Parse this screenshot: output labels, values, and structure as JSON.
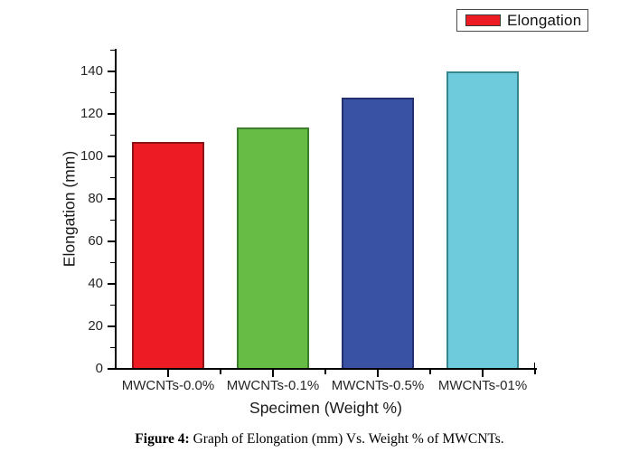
{
  "legend": {
    "label": "Elongation",
    "swatch_color": "#ED1C24",
    "position": "top-right"
  },
  "chart_data": {
    "type": "bar",
    "title": "",
    "categories": [
      "MWCNTs-0.0%",
      "MWCNTs-0.1%",
      "MWCNTs-0.5%",
      "MWCNTs-01%"
    ],
    "series": [
      {
        "name": "Elongation",
        "values": [
          107,
          113.5,
          127.5,
          140
        ]
      }
    ],
    "xlabel": "Specimen (Weight %)",
    "ylabel": "Elongation (mm)",
    "ylim": [
      0,
      150
    ],
    "ytick_major_step": 20,
    "ytick_minor_step": 10,
    "ytick_labels": [
      "0",
      "20",
      "40",
      "60",
      "80",
      "100",
      "120",
      "140"
    ],
    "bar_fill_colors": [
      "#ED1C24",
      "#67BC45",
      "#3A52A4",
      "#6DCBDC"
    ],
    "bar_edge_colors": [
      "#8C1216",
      "#3B7F2B",
      "#232F6E",
      "#37858F"
    ],
    "grid": false,
    "legend_entries": [
      "Elongation"
    ],
    "legend_position": "top-right"
  },
  "caption": {
    "label": "Figure 4:",
    "text": " Graph of Elongation (mm) Vs. Weight % of MWCNTs."
  }
}
